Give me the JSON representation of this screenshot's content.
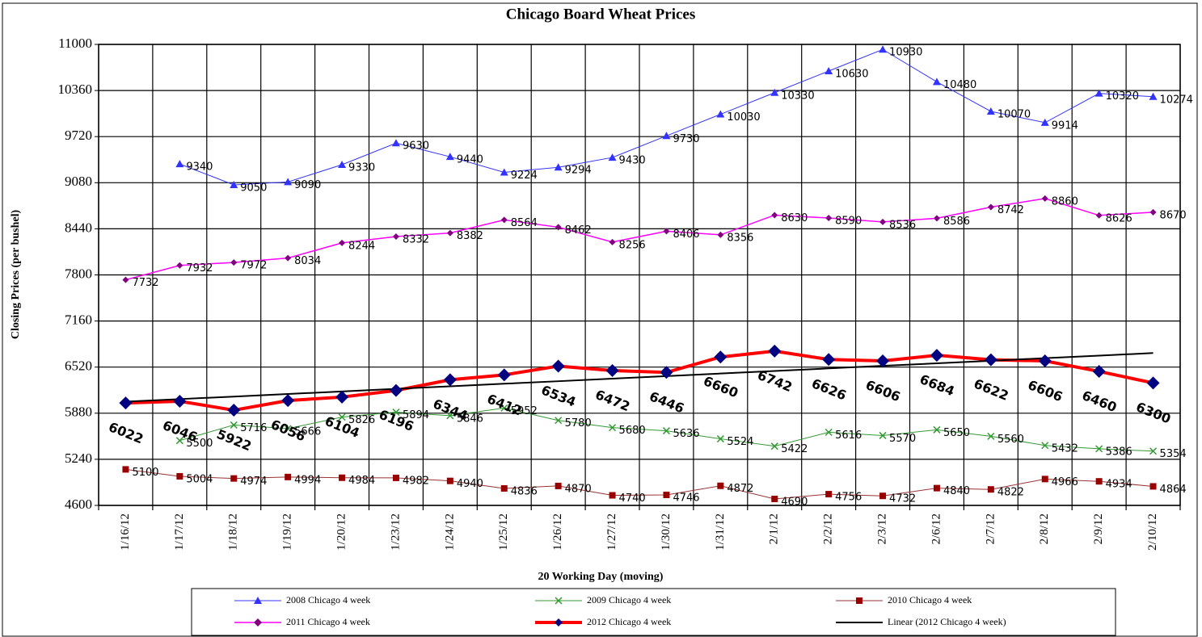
{
  "chart_data": {
    "type": "line",
    "title": "Chicago Board Wheat Prices",
    "x_label": "20 Working Day (moving)",
    "y_label": "Closing Prices (per bushel)",
    "categories": [
      "1/16/12",
      "1/17/12",
      "1/18/12",
      "1/19/12",
      "1/20/12",
      "1/23/12",
      "1/24/12",
      "1/25/12",
      "1/26/12",
      "1/27/12",
      "1/30/12",
      "1/31/12",
      "2/1/12",
      "2/2/12",
      "2/3/12",
      "2/6/12",
      "2/7/12",
      "2/8/12",
      "2/9/12",
      "2/10/12"
    ],
    "ylim": [
      4600,
      11000
    ],
    "yticks": [
      4600,
      5240,
      5880,
      6520,
      7160,
      7800,
      8440,
      9080,
      9720,
      10360,
      11000
    ],
    "grid": true,
    "legend": "bottom",
    "series": [
      {
        "name": "2008 Chicago 4 week",
        "color": "#3333ff",
        "marker": "triangle",
        "marker_color": "#3333ff",
        "line_width": 1,
        "data_labels": true,
        "values": [
          null,
          9340,
          9050,
          9090,
          9330,
          9630,
          9440,
          9224,
          9294,
          9430,
          9730,
          10030,
          10330,
          10630,
          10930,
          10480,
          10070,
          9914,
          10320,
          10274
        ]
      },
      {
        "name": "2009 Chicago 4 week",
        "color": "#339933",
        "marker": "x",
        "marker_color": "#339933",
        "line_width": 1,
        "data_labels": true,
        "values": [
          null,
          5500,
          5716,
          5666,
          5826,
          5894,
          5846,
          5952,
          5780,
          5680,
          5636,
          5524,
          5422,
          5616,
          5570,
          5650,
          5560,
          5432,
          5386,
          5354
        ]
      },
      {
        "name": "2010 Chicago 4 week",
        "color": "#993333",
        "marker": "square",
        "marker_color": "#990000",
        "line_width": 1,
        "data_labels": true,
        "values": [
          5100,
          5004,
          4974,
          4994,
          4984,
          4982,
          4940,
          4836,
          4870,
          4740,
          4746,
          4872,
          4690,
          4756,
          4732,
          4840,
          4822,
          4966,
          4934,
          4864
        ]
      },
      {
        "name": "2011 Chicago 4 week",
        "color": "#ff00ff",
        "marker": "diamond",
        "marker_color": "#800080",
        "line_width": 1.5,
        "data_labels": true,
        "values": [
          7732,
          7932,
          7972,
          8034,
          8244,
          8332,
          8382,
          8564,
          8462,
          8256,
          8406,
          8356,
          8630,
          8590,
          8536,
          8586,
          8742,
          8860,
          8626,
          8670
        ]
      },
      {
        "name": "2012 Chicago 4 week",
        "color": "#ff0000",
        "marker": "diamond",
        "marker_color": "#000080",
        "line_width": 4,
        "data_labels": true,
        "values": [
          6022,
          6046,
          5922,
          6056,
          6104,
          6196,
          6344,
          6412,
          6534,
          6472,
          6446,
          6660,
          6742,
          6626,
          6606,
          6684,
          6622,
          6606,
          6460,
          6300
        ]
      },
      {
        "name": "Linear (2012 Chicago 4 week)",
        "color": "#000000",
        "marker": "none",
        "marker_color": "#000000",
        "line_width": 2,
        "data_labels": false,
        "values": [
          6040,
          6076,
          6111,
          6147,
          6182,
          6218,
          6253,
          6289,
          6324,
          6360,
          6395,
          6431,
          6466,
          6502,
          6537,
          6573,
          6608,
          6644,
          6679,
          6715
        ]
      }
    ]
  }
}
